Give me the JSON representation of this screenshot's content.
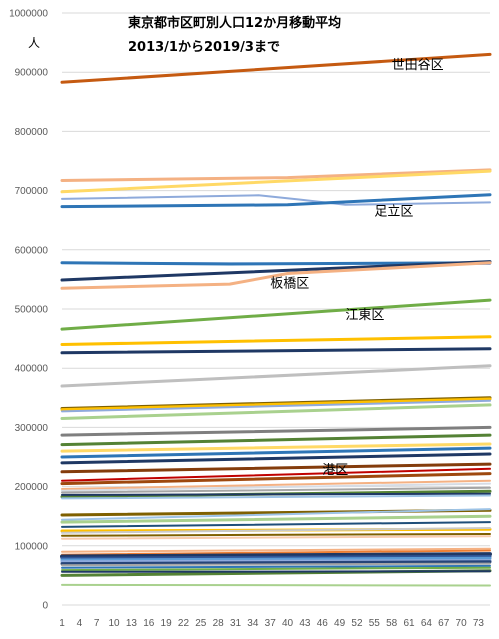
{
  "chart_data": {
    "type": "line",
    "title_line1": "東京都市区町別人口12か月移動平均",
    "title_line2": "2013/1から2019/3まで",
    "ylabel": "人",
    "ylim": [
      0,
      1000000
    ],
    "yticks": [
      0,
      100000,
      200000,
      300000,
      400000,
      500000,
      600000,
      700000,
      800000,
      900000,
      1000000
    ],
    "xlim": [
      1,
      75
    ],
    "xticks": [
      1,
      4,
      7,
      10,
      13,
      16,
      19,
      22,
      25,
      28,
      31,
      34,
      37,
      40,
      43,
      46,
      49,
      52,
      55,
      58,
      61,
      64,
      67,
      70,
      73
    ],
    "grid": true,
    "annotations": [
      {
        "text": "世田谷区",
        "x": 58,
        "y": 905000
      },
      {
        "text": "足立区",
        "x": 55,
        "y": 658000
      },
      {
        "text": "板橋区",
        "x": 37,
        "y": 536000
      },
      {
        "text": "江東区",
        "x": 50,
        "y": 483000
      },
      {
        "text": "港区",
        "x": 46,
        "y": 221000
      }
    ],
    "series": [
      {
        "color": "#c55a11",
        "width": 3,
        "points": [
          [
            1,
            883000
          ],
          [
            75,
            930000
          ]
        ]
      },
      {
        "color": "#f4b183",
        "width": 3,
        "points": [
          [
            1,
            717000
          ],
          [
            40,
            722000
          ],
          [
            75,
            735000
          ]
        ]
      },
      {
        "color": "#ffd966",
        "width": 3,
        "points": [
          [
            1,
            698000
          ],
          [
            75,
            733000
          ]
        ]
      },
      {
        "color": "#8eaadb",
        "width": 2,
        "points": [
          [
            1,
            686000
          ],
          [
            35,
            692000
          ],
          [
            42,
            685000
          ],
          [
            50,
            676000
          ],
          [
            75,
            680000
          ]
        ]
      },
      {
        "color": "#2e75b6",
        "width": 3,
        "points": [
          [
            1,
            673000
          ],
          [
            40,
            676000
          ],
          [
            75,
            693000
          ]
        ]
      },
      {
        "color": "#8eaadb",
        "width": 2,
        "points": [
          [
            1,
            578000
          ],
          [
            75,
            576000
          ]
        ]
      },
      {
        "color": "#2e75b6",
        "width": 3,
        "points": [
          [
            1,
            578000
          ],
          [
            30,
            576000
          ],
          [
            75,
            578000
          ]
        ]
      },
      {
        "color": "#1f3864",
        "width": 3,
        "points": [
          [
            1,
            549000
          ],
          [
            75,
            580000
          ]
        ]
      },
      {
        "color": "#f4b183",
        "width": 3,
        "points": [
          [
            1,
            535000
          ],
          [
            30,
            542000
          ],
          [
            40,
            560000
          ],
          [
            75,
            578000
          ]
        ]
      },
      {
        "color": "#70ad47",
        "width": 3,
        "points": [
          [
            1,
            466000
          ],
          [
            75,
            515000
          ]
        ]
      },
      {
        "color": "#ffc000",
        "width": 3,
        "points": [
          [
            1,
            440000
          ],
          [
            75,
            453000
          ]
        ]
      },
      {
        "color": "#1f3864",
        "width": 3,
        "points": [
          [
            1,
            426000
          ],
          [
            75,
            433000
          ]
        ]
      },
      {
        "color": "#bfbfbf",
        "width": 3,
        "points": [
          [
            1,
            370000
          ],
          [
            75,
            404000
          ]
        ]
      },
      {
        "color": "#7f6000",
        "width": 3,
        "points": [
          [
            1,
            332000
          ],
          [
            75,
            350000
          ]
        ]
      },
      {
        "color": "#ffc000",
        "width": 3,
        "points": [
          [
            1,
            330000
          ],
          [
            75,
            348000
          ]
        ]
      },
      {
        "color": "#8faadc",
        "width": 2,
        "points": [
          [
            1,
            327000
          ],
          [
            75,
            345000
          ]
        ]
      },
      {
        "color": "#a9d18e",
        "width": 3,
        "points": [
          [
            1,
            315000
          ],
          [
            75,
            338000
          ]
        ]
      },
      {
        "color": "#7f7f7f",
        "width": 3,
        "points": [
          [
            1,
            287000
          ],
          [
            75,
            300000
          ]
        ]
      },
      {
        "color": "#548235",
        "width": 3,
        "points": [
          [
            1,
            271000
          ],
          [
            75,
            287000
          ]
        ]
      },
      {
        "color": "#ffd966",
        "width": 3,
        "points": [
          [
            1,
            260000
          ],
          [
            75,
            272000
          ]
        ]
      },
      {
        "color": "#2e75b6",
        "width": 3,
        "points": [
          [
            1,
            250000
          ],
          [
            75,
            265000
          ]
        ]
      },
      {
        "color": "#1f3864",
        "width": 3,
        "points": [
          [
            1,
            240000
          ],
          [
            75,
            255000
          ]
        ]
      },
      {
        "color": "#843c0c",
        "width": 3,
        "points": [
          [
            1,
            225000
          ],
          [
            75,
            238000
          ]
        ]
      },
      {
        "color": "#c00000",
        "width": 2,
        "points": [
          [
            1,
            210000
          ],
          [
            75,
            230000
          ]
        ]
      },
      {
        "color": "#9e480e",
        "width": 3,
        "points": [
          [
            1,
            205000
          ],
          [
            75,
            222000
          ]
        ]
      },
      {
        "color": "#f4b183",
        "width": 2,
        "points": [
          [
            1,
            196000
          ],
          [
            75,
            210000
          ]
        ]
      },
      {
        "color": "#d6dce5",
        "width": 2,
        "points": [
          [
            1,
            193000
          ],
          [
            75,
            205000
          ]
        ]
      },
      {
        "color": "#a5a5a5",
        "width": 2,
        "points": [
          [
            1,
            190000
          ],
          [
            75,
            198000
          ]
        ]
      },
      {
        "color": "#548235",
        "width": 3,
        "points": [
          [
            1,
            183000
          ],
          [
            75,
            192000
          ]
        ]
      },
      {
        "color": "#1f3864",
        "width": 2,
        "points": [
          [
            1,
            186000
          ],
          [
            75,
            188000
          ]
        ]
      },
      {
        "color": "#9dc3e6",
        "width": 2,
        "points": [
          [
            1,
            180000
          ],
          [
            75,
            185000
          ]
        ]
      },
      {
        "color": "#7f6000",
        "width": 3,
        "points": [
          [
            1,
            152000
          ],
          [
            75,
            160000
          ]
        ]
      },
      {
        "color": "#9dc3e6",
        "width": 2,
        "points": [
          [
            1,
            144000
          ],
          [
            75,
            162000
          ]
        ]
      },
      {
        "color": "#a9d18e",
        "width": 3,
        "points": [
          [
            1,
            140000
          ],
          [
            75,
            150000
          ]
        ]
      },
      {
        "color": "#1f4e79",
        "width": 2,
        "points": [
          [
            1,
            132000
          ],
          [
            75,
            140000
          ]
        ]
      },
      {
        "color": "#ffc000",
        "width": 3,
        "points": [
          [
            1,
            125000
          ],
          [
            75,
            128000
          ]
        ]
      },
      {
        "color": "#c9c9c9",
        "width": 2,
        "points": [
          [
            1,
            122000
          ],
          [
            75,
            130000
          ]
        ]
      },
      {
        "color": "#7f6000",
        "width": 2,
        "points": [
          [
            1,
            117000
          ],
          [
            75,
            120000
          ]
        ]
      },
      {
        "color": "#f8cbad",
        "width": 2,
        "points": [
          [
            1,
            112000
          ],
          [
            75,
            116000
          ]
        ]
      },
      {
        "color": "#ed7d31",
        "width": 2,
        "points": [
          [
            1,
            85000
          ],
          [
            75,
            92000
          ]
        ]
      },
      {
        "color": "#f4b183",
        "width": 2,
        "points": [
          [
            1,
            90000
          ],
          [
            75,
            95000
          ]
        ]
      },
      {
        "color": "#1f3864",
        "width": 4,
        "points": [
          [
            1,
            82000
          ],
          [
            75,
            86000
          ]
        ]
      },
      {
        "color": "#2f5597",
        "width": 3,
        "points": [
          [
            1,
            79000
          ],
          [
            75,
            82000
          ]
        ]
      },
      {
        "color": "#5b9bd5",
        "width": 3,
        "points": [
          [
            1,
            76000
          ],
          [
            75,
            79000
          ]
        ]
      },
      {
        "color": "#8faadc",
        "width": 3,
        "points": [
          [
            1,
            73000
          ],
          [
            75,
            75000
          ]
        ]
      },
      {
        "color": "#264478",
        "width": 3,
        "points": [
          [
            1,
            70000
          ],
          [
            75,
            73000
          ]
        ]
      },
      {
        "color": "#a5a5a5",
        "width": 2,
        "points": [
          [
            1,
            67000
          ],
          [
            75,
            70000
          ]
        ]
      },
      {
        "color": "#2e75b6",
        "width": 2,
        "points": [
          [
            1,
            63000
          ],
          [
            75,
            66000
          ]
        ]
      },
      {
        "color": "#70ad47",
        "width": 2,
        "points": [
          [
            1,
            59000
          ],
          [
            75,
            63000
          ]
        ]
      },
      {
        "color": "#548235",
        "width": 3,
        "points": [
          [
            1,
            50000
          ],
          [
            75,
            58000
          ]
        ]
      },
      {
        "color": "#1f3864",
        "width": 2,
        "points": [
          [
            1,
            56000
          ],
          [
            75,
            57000
          ]
        ]
      },
      {
        "color": "#a9d18e",
        "width": 2,
        "points": [
          [
            1,
            34000
          ],
          [
            75,
            33000
          ]
        ]
      }
    ]
  }
}
